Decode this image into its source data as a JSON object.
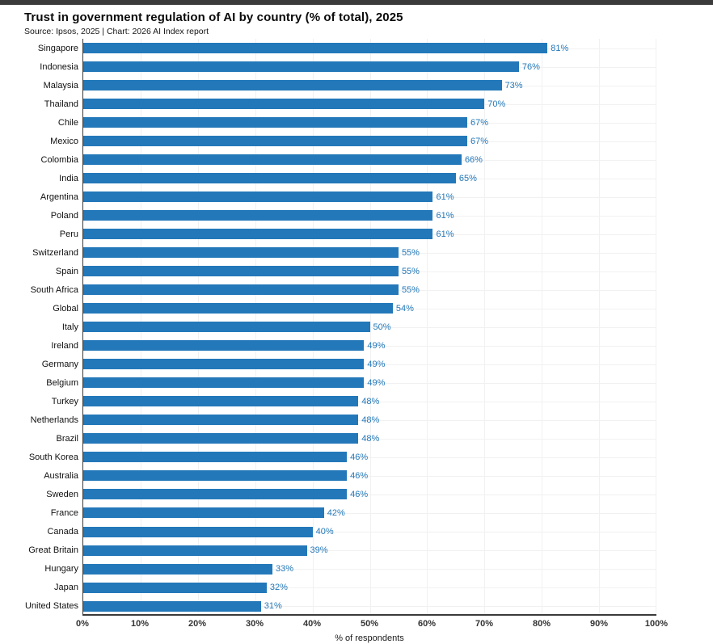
{
  "chart_data": {
    "type": "bar",
    "orientation": "horizontal",
    "title": "Trust in government regulation of AI by country (% of total), 2025",
    "source": "Source: Ipsos, 2025 | Chart: 2026 AI Index report",
    "xlabel": "% of respondents",
    "xlim": [
      0,
      100
    ],
    "xticks": [
      "0%",
      "10%",
      "20%",
      "30%",
      "40%",
      "50%",
      "60%",
      "70%",
      "80%",
      "90%",
      "100%"
    ],
    "grid": true,
    "legend": "none",
    "bar_color": "#2378b9",
    "value_label_color": "#2378b9",
    "value_suffix": "%",
    "categories": [
      "Singapore",
      "Indonesia",
      "Malaysia",
      "Thailand",
      "Chile",
      "Mexico",
      "Colombia",
      "India",
      "Argentina",
      "Poland",
      "Peru",
      "Switzerland",
      "Spain",
      "South Africa",
      "Global",
      "Italy",
      "Ireland",
      "Germany",
      "Belgium",
      "Turkey",
      "Netherlands",
      "Brazil",
      "South Korea",
      "Australia",
      "Sweden",
      "France",
      "Canada",
      "Great Britain",
      "Hungary",
      "Japan",
      "United States"
    ],
    "values": [
      81,
      76,
      73,
      70,
      67,
      67,
      66,
      65,
      61,
      61,
      61,
      55,
      55,
      55,
      54,
      50,
      49,
      49,
      49,
      48,
      48,
      48,
      46,
      46,
      46,
      42,
      40,
      39,
      33,
      32,
      31
    ]
  }
}
